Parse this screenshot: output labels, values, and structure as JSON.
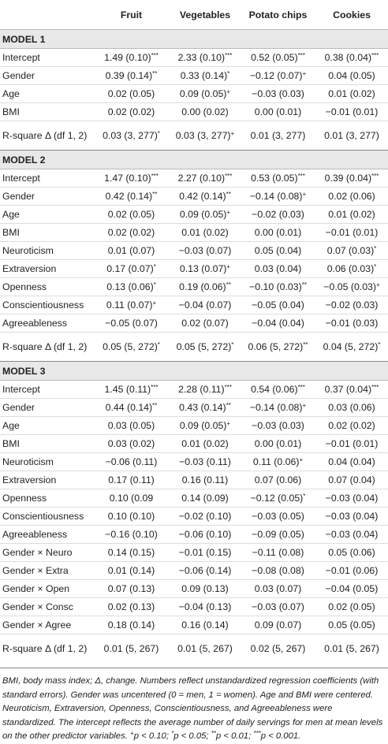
{
  "table": {
    "columns": [
      "Fruit",
      "Vegetables",
      "Potato chips",
      "Cookies"
    ],
    "sections": [
      {
        "title": "MODEL 1",
        "rows": [
          {
            "label": "Intercept",
            "cells": [
              {
                "text": "1.49 (0.10)",
                "sig": "***"
              },
              {
                "text": "2.33 (0.10)",
                "sig": "***"
              },
              {
                "text": "0.52 (0.05)",
                "sig": "***"
              },
              {
                "text": "0.38 (0.04)",
                "sig": "***"
              }
            ]
          },
          {
            "label": "Gender",
            "cells": [
              {
                "text": "0.39 (0.14)",
                "sig": "**"
              },
              {
                "text": "0.33 (0.14)",
                "sig": "*"
              },
              {
                "text": "−0.12 (0.07)",
                "sig": "+"
              },
              {
                "text": "0.04 (0.05)"
              }
            ]
          },
          {
            "label": "Age",
            "cells": [
              {
                "text": "0.02 (0.05)"
              },
              {
                "text": "0.09 (0.05)",
                "sig": "+"
              },
              {
                "text": "−0.03 (0.03)"
              },
              {
                "text": "0.01 (0.02)"
              }
            ]
          },
          {
            "label": "BMI",
            "cells": [
              {
                "text": "0.02 (0.02)"
              },
              {
                "text": "0.00 (0.02)"
              },
              {
                "text": "0.00 (0.01)"
              },
              {
                "text": "−0.01 (0.01)"
              }
            ]
          },
          {
            "label": "R-square Δ (df 1, 2)",
            "cells": [
              {
                "text": "0.03 (3, 277)",
                "sig": "*"
              },
              {
                "text": "0.03 (3, 277)",
                "sig": "+"
              },
              {
                "text": "0.01 (3, 277)"
              },
              {
                "text": "0.01 (3, 277)"
              }
            ]
          }
        ]
      },
      {
        "title": "MODEL 2",
        "rows": [
          {
            "label": "Intercept",
            "cells": [
              {
                "text": "1.47 (0.10)",
                "sig": "***"
              },
              {
                "text": "2.27 (0.10)",
                "sig": "***"
              },
              {
                "text": "0.53 (0.05)",
                "sig": "***"
              },
              {
                "text": "0.39 (0.04)",
                "sig": "***"
              }
            ]
          },
          {
            "label": "Gender",
            "cells": [
              {
                "text": "0.42 (0.14)",
                "sig": "**"
              },
              {
                "text": "0.42 (0.14)",
                "sig": "**"
              },
              {
                "text": "−0.14 (0.08)",
                "sig": "+"
              },
              {
                "text": "0.02 (0.06)"
              }
            ]
          },
          {
            "label": "Age",
            "cells": [
              {
                "text": "0.02 (0.05)"
              },
              {
                "text": "0.09 (0.05)",
                "sig": "+"
              },
              {
                "text": "−0.02 (0.03)"
              },
              {
                "text": "0.01 (0.02)"
              }
            ]
          },
          {
            "label": "BMI",
            "cells": [
              {
                "text": "0.02 (0.02)"
              },
              {
                "text": "0.01 (0.02)"
              },
              {
                "text": "0.00 (0.01)"
              },
              {
                "text": "−0.01 (0.01)"
              }
            ]
          },
          {
            "label": "Neuroticism",
            "cells": [
              {
                "text": "0.01 (0.07)"
              },
              {
                "text": "−0.03 (0.07)"
              },
              {
                "text": "0.05 (0.04)"
              },
              {
                "text": "0.07 (0.03)",
                "sig": "*"
              }
            ]
          },
          {
            "label": "Extraversion",
            "cells": [
              {
                "text": "0.17 (0.07)",
                "sig": "*"
              },
              {
                "text": "0.13 (0.07)",
                "sig": "+"
              },
              {
                "text": "0.03 (0.04)"
              },
              {
                "text": "0.06 (0.03)",
                "sig": "*"
              }
            ]
          },
          {
            "label": "Openness",
            "cells": [
              {
                "text": "0.13 (0.06)",
                "sig": "*"
              },
              {
                "text": "0.19 (0.06)",
                "sig": "**"
              },
              {
                "text": "−0.10 (0.03)",
                "sig": "**"
              },
              {
                "text": "−0.05 (0.03)",
                "sig": "+"
              }
            ]
          },
          {
            "label": "Conscientiousness",
            "cells": [
              {
                "text": "0.11 (0.07)",
                "sig": "+"
              },
              {
                "text": "−0.04 (0.07)"
              },
              {
                "text": "−0.05 (0.04)"
              },
              {
                "text": "−0.02 (0.03)"
              }
            ]
          },
          {
            "label": "Agreeableness",
            "cells": [
              {
                "text": "−0.05 (0.07)"
              },
              {
                "text": "0.02 (0.07)"
              },
              {
                "text": "−0.04 (0.04)"
              },
              {
                "text": "−0.01 (0.03)"
              }
            ]
          },
          {
            "label": "R-square Δ (df 1, 2)",
            "cells": [
              {
                "text": "0.05 (5, 272)",
                "sig": "*"
              },
              {
                "text": "0.05 (5, 272)",
                "sig": "*"
              },
              {
                "text": "0.06 (5, 272)",
                "sig": "**"
              },
              {
                "text": "0.04 (5, 272)",
                "sig": "*"
              }
            ]
          }
        ]
      },
      {
        "title": "MODEL 3",
        "rows": [
          {
            "label": "Intercept",
            "cells": [
              {
                "text": "1.45 (0.11)",
                "sig": "***"
              },
              {
                "text": "2.28 (0.11)",
                "sig": "***"
              },
              {
                "text": "0.54 (0.06)",
                "sig": "***"
              },
              {
                "text": "0.37 (0.04)",
                "sig": "***"
              }
            ]
          },
          {
            "label": "Gender",
            "cells": [
              {
                "text": "0.44 (0.14)",
                "sig": "**"
              },
              {
                "text": "0.43 (0.14)",
                "sig": "**"
              },
              {
                "text": "−0.14 (0.08)",
                "sig": "+"
              },
              {
                "text": "0.03 (0.06)"
              }
            ]
          },
          {
            "label": "Age",
            "cells": [
              {
                "text": "0.03 (0.05)"
              },
              {
                "text": "0.09 (0.05)",
                "sig": "+"
              },
              {
                "text": "−0.03 (0.03)"
              },
              {
                "text": "0.02 (0.02)"
              }
            ]
          },
          {
            "label": "BMI",
            "cells": [
              {
                "text": "0.03 (0.02)"
              },
              {
                "text": "0.01 (0.02)"
              },
              {
                "text": "0.00 (0.01)"
              },
              {
                "text": "−0.01 (0.01)"
              }
            ]
          },
          {
            "label": "Neuroticism",
            "cells": [
              {
                "text": "−0.06 (0.11)"
              },
              {
                "text": "−0.03 (0.11)"
              },
              {
                "text": "0.11 (0.06)",
                "sig": "+"
              },
              {
                "text": "0.04 (0.04)"
              }
            ]
          },
          {
            "label": "Extraversion",
            "cells": [
              {
                "text": "0.17 (0.11)"
              },
              {
                "text": "0.16 (0.11)"
              },
              {
                "text": "0.07 (0.06)"
              },
              {
                "text": "0.07 (0.04)"
              }
            ]
          },
          {
            "label": "Openness",
            "cells": [
              {
                "text": "0.10 (0.09"
              },
              {
                "text": "0.14 (0.09)"
              },
              {
                "text": "−0.12 (0.05)",
                "sig": "*"
              },
              {
                "text": "−0.03 (0.04)"
              }
            ]
          },
          {
            "label": "Conscientiousness",
            "cells": [
              {
                "text": "0.10 (0.10)"
              },
              {
                "text": "−0.02 (0.10)"
              },
              {
                "text": "−0.03 (0.05)"
              },
              {
                "text": "−0.03 (0.04)"
              }
            ]
          },
          {
            "label": "Agreeableness",
            "cells": [
              {
                "text": "−0.16 (0.10)"
              },
              {
                "text": "−0.06 (0.10)"
              },
              {
                "text": "−0.09 (0.05)"
              },
              {
                "text": "−0.03 (0.04)"
              }
            ]
          },
          {
            "label": "Gender × Neuro",
            "cells": [
              {
                "text": "0.14 (0.15)"
              },
              {
                "text": "−0.01 (0.15)"
              },
              {
                "text": "−0.11 (0.08)"
              },
              {
                "text": "0.05 (0.06)"
              }
            ]
          },
          {
            "label": "Gender × Extra",
            "cells": [
              {
                "text": "0.01 (0.14)"
              },
              {
                "text": "−0.06 (0.14)"
              },
              {
                "text": "−0.08 (0.08)"
              },
              {
                "text": "−0.01 (0.06)"
              }
            ]
          },
          {
            "label": "Gender × Open",
            "cells": [
              {
                "text": "0.07 (0.13)"
              },
              {
                "text": "0.09 (0.13)"
              },
              {
                "text": "0.03 (0.07)"
              },
              {
                "text": "−0.04 (0.05)"
              }
            ]
          },
          {
            "label": "Gender × Consc",
            "cells": [
              {
                "text": "0.02 (0.13)"
              },
              {
                "text": "−0.04 (0.13)"
              },
              {
                "text": "−0.03 (0.07)"
              },
              {
                "text": "0.02 (0.05)"
              }
            ]
          },
          {
            "label": "Gender × Agree",
            "cells": [
              {
                "text": "0.18 (0.14)"
              },
              {
                "text": "0.16 (0.14)"
              },
              {
                "text": "0.09 (0.07)"
              },
              {
                "text": "0.05 (0.05)"
              }
            ]
          },
          {
            "label": "R-square Δ (df 1, 2)",
            "cells": [
              {
                "text": "0.01 (5, 267)"
              },
              {
                "text": "0.01 (5, 267)"
              },
              {
                "text": "0.02 (5, 267)"
              },
              {
                "text": "0.01 (5, 267)"
              }
            ]
          }
        ]
      }
    ]
  },
  "footnote": {
    "text": "BMI, body mass index; Δ, change. Numbers reflect unstandardized regression coefficients (with standard errors). Gender was uncentered (0 = men, 1 = women). Age and BMI were centered. Neuroticism, Extraversion, Openness, Conscientiousness, and Agreeableness were standardized. The intercept reflects the average number of daily servings for men at mean levels on the other predictor variables.",
    "notes": [
      {
        "sig": "+",
        "text": "p < 0.10;"
      },
      {
        "sig": "*",
        "text": "p < 0.05;"
      },
      {
        "sig": "**",
        "text": "p < 0.01;"
      },
      {
        "sig": "***",
        "text": "p < 0.001."
      }
    ]
  }
}
